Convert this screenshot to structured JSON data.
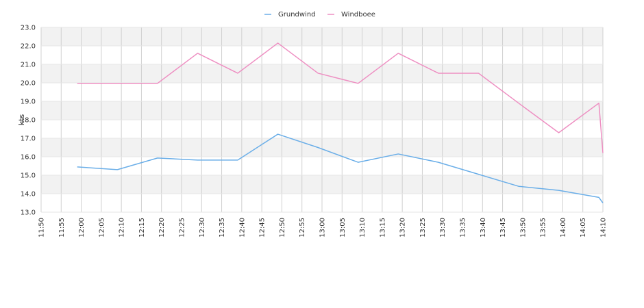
{
  "chart_data": {
    "type": "line",
    "title": "",
    "xlabel": "",
    "ylabel": "kts",
    "ylim": [
      13.0,
      23.0
    ],
    "yticks": [
      "13.0",
      "14.0",
      "15.0",
      "16.0",
      "17.0",
      "18.0",
      "19.0",
      "20.0",
      "21.0",
      "22.0",
      "23.0"
    ],
    "xticks": [
      "11:50",
      "11:55",
      "12:00",
      "12:05",
      "12:10",
      "12:15",
      "12:20",
      "12:25",
      "12:30",
      "12:35",
      "12:40",
      "12:45",
      "12:50",
      "12:55",
      "13:00",
      "13:05",
      "13:10",
      "13:15",
      "13:20",
      "13:25",
      "13:30",
      "13:35",
      "13:40",
      "13:45",
      "13:50",
      "13:55",
      "14:00",
      "14:05",
      "14:10"
    ],
    "xlim": [
      "11:50",
      "14:10"
    ],
    "grid": true,
    "legend_position": "top-center",
    "series": [
      {
        "name": "Grundwind",
        "color": "#6aaee8",
        "points": [
          [
            "11:59",
            15.45
          ],
          [
            "12:09",
            15.3
          ],
          [
            "12:19",
            15.93
          ],
          [
            "12:29",
            15.82
          ],
          [
            "12:39",
            15.82
          ],
          [
            "12:49",
            17.22
          ],
          [
            "12:59",
            16.5
          ],
          [
            "13:09",
            15.7
          ],
          [
            "13:19",
            16.15
          ],
          [
            "13:29",
            15.7
          ],
          [
            "13:39",
            15.05
          ],
          [
            "13:49",
            14.4
          ],
          [
            "13:59",
            14.18
          ],
          [
            "14:09",
            13.8
          ],
          [
            "14:10",
            13.5
          ]
        ]
      },
      {
        "name": "Windboee",
        "color": "#ee8fc2",
        "points": [
          [
            "11:59",
            19.97
          ],
          [
            "12:09",
            19.97
          ],
          [
            "12:19",
            19.97
          ],
          [
            "12:29",
            21.6
          ],
          [
            "12:39",
            20.52
          ],
          [
            "12:49",
            22.15
          ],
          [
            "12:59",
            20.52
          ],
          [
            "13:09",
            19.97
          ],
          [
            "13:19",
            21.6
          ],
          [
            "13:29",
            20.52
          ],
          [
            "13:39",
            20.52
          ],
          [
            "13:49",
            18.9
          ],
          [
            "13:59",
            17.3
          ],
          [
            "14:09",
            18.9
          ],
          [
            "14:10",
            16.2
          ]
        ]
      }
    ]
  }
}
